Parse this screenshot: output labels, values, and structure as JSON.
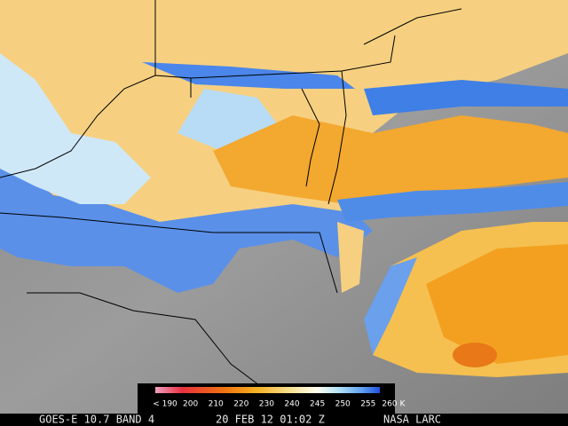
{
  "colorbar": {
    "labels": [
      "< 190",
      "200",
      "210",
      "220",
      "230",
      "240",
      "245",
      "250",
      "255",
      "260 K"
    ]
  },
  "footer": {
    "satellite": "GOES-E 10.7 BAND 4",
    "time": "20 FEB 12 01:02 Z",
    "source": "NASA LARC"
  }
}
